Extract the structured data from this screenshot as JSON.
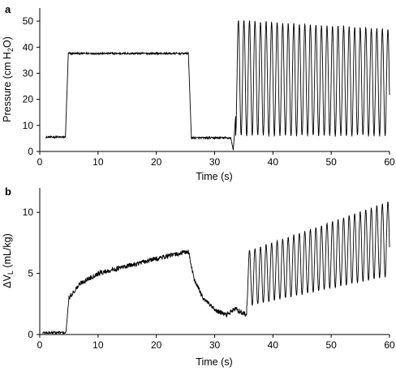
{
  "chart_data": [
    {
      "panel": "a",
      "type": "line",
      "xlabel": "Time (s)",
      "ylabel_parts": [
        "Pressure (cm H",
        "2",
        "O)"
      ],
      "xlim": [
        0,
        60
      ],
      "ylim": [
        0,
        55
      ],
      "xticks": [
        0,
        10,
        20,
        30,
        40,
        50,
        60
      ],
      "yticks": [
        0,
        10,
        20,
        30,
        40,
        50
      ],
      "grid": false,
      "legend": "none",
      "series": [
        {
          "segments": [
            {
              "from": 1.0,
              "to": 4.4,
              "kind": "noisy_level",
              "level": 5.5,
              "noise": 0.35
            },
            {
              "from": 4.4,
              "to": 4.9,
              "kind": "ramp",
              "start": 5.5,
              "end": 37.5
            },
            {
              "from": 4.9,
              "to": 25.5,
              "kind": "noisy_level",
              "level": 37.6,
              "noise": 0.35
            },
            {
              "from": 25.5,
              "to": 26.0,
              "kind": "ramp",
              "start": 37.6,
              "end": 6.0
            },
            {
              "from": 26.0,
              "to": 32.8,
              "kind": "noisy_level",
              "level": 5.2,
              "noise": 0.4
            },
            {
              "from": 32.8,
              "to": 33.6,
              "kind": "dip",
              "level": 0.5
            },
            {
              "from": 33.6,
              "to": 60.0,
              "kind": "oscillation",
              "period": 0.95,
              "min": 6.0,
              "max_start": 50.5,
              "max_end": 47.0
            }
          ]
        }
      ]
    },
    {
      "panel": "b",
      "type": "line",
      "xlabel": "Time (s)",
      "ylabel_parts": [
        "ΔV",
        "L",
        " (mL/kg)"
      ],
      "xlim": [
        0,
        60
      ],
      "ylim": [
        0,
        12
      ],
      "xticks": [
        0,
        10,
        20,
        30,
        40,
        50,
        60
      ],
      "yticks": [
        0,
        5,
        10
      ],
      "grid": false,
      "legend": "none",
      "series": [
        {
          "segments": [
            {
              "from": 0.5,
              "to": 4.5,
              "kind": "noisy_level",
              "level": 0.15,
              "noise": 0.12
            },
            {
              "from": 4.5,
              "to": 5.0,
              "kind": "ramp",
              "start": 0.2,
              "end": 3.0
            },
            {
              "from": 5.0,
              "to": 25.5,
              "kind": "rise",
              "points": [
                [
                  5.0,
                  3.0
                ],
                [
                  7.0,
                  4.2
                ],
                [
                  10.0,
                  5.0
                ],
                [
                  15.0,
                  5.6
                ],
                [
                  20.0,
                  6.2
                ],
                [
                  25.5,
                  6.8
                ]
              ],
              "noise": 0.2
            },
            {
              "from": 25.5,
              "to": 35.5,
              "kind": "decay",
              "points": [
                [
                  25.5,
                  6.8
                ],
                [
                  26.5,
                  4.5
                ],
                [
                  28.0,
                  3.0
                ],
                [
                  30.0,
                  2.0
                ],
                [
                  32.0,
                  1.6
                ],
                [
                  33.5,
                  2.1
                ],
                [
                  35.5,
                  1.6
                ]
              ],
              "noise": 0.2
            },
            {
              "from": 35.5,
              "to": 60.0,
              "kind": "oscillation",
              "period": 0.95,
              "min_start": 2.3,
              "min_end": 4.8,
              "max_start": 6.8,
              "max_end": 10.9
            }
          ]
        }
      ]
    }
  ]
}
